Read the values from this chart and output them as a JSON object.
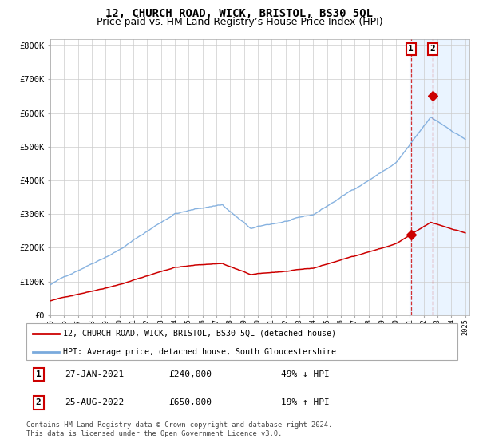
{
  "title": "12, CHURCH ROAD, WICK, BRISTOL, BS30 5QL",
  "subtitle": "Price paid vs. HM Land Registry’s House Price Index (HPI)",
  "ylim": [
    0,
    820000
  ],
  "yticks": [
    0,
    100000,
    200000,
    300000,
    400000,
    500000,
    600000,
    700000,
    800000
  ],
  "ytick_labels": [
    "£0",
    "£100K",
    "£200K",
    "£300K",
    "£400K",
    "£500K",
    "£600K",
    "£700K",
    "£800K"
  ],
  "hpi_color": "#7aaadd",
  "price_color": "#cc0000",
  "sale1_date_num": 2021.07,
  "sale1_price": 240000,
  "sale2_date_num": 2022.65,
  "sale2_price": 650000,
  "legend1": "12, CHURCH ROAD, WICK, BRISTOL, BS30 5QL (detached house)",
  "legend2": "HPI: Average price, detached house, South Gloucestershire",
  "table_row1": [
    "1",
    "27-JAN-2021",
    "£240,000",
    "49% ↓ HPI"
  ],
  "table_row2": [
    "2",
    "25-AUG-2022",
    "£650,000",
    "19% ↑ HPI"
  ],
  "footnote": "Contains HM Land Registry data © Crown copyright and database right 2024.\nThis data is licensed under the Open Government Licence v3.0.",
  "bg_highlight_color": "#ddeeff",
  "grid_color": "#cccccc",
  "title_fontsize": 10,
  "subtitle_fontsize": 9,
  "tick_fontsize": 7.5
}
